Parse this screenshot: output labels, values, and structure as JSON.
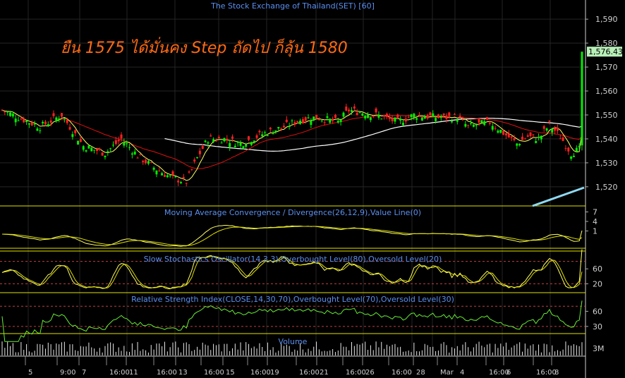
{
  "title": "The Stock Exchange of Thailand(SET) [60]",
  "annotation": "ยืน 1575 ได้มั่นคง Step ถัดไป ก็ลุ้น 1580",
  "colors": {
    "up": "#00ee00",
    "down": "#ff2020",
    "ma_fast": "#ffff66",
    "ma_mid": "#dd1010",
    "ma_slow": "#ffffff",
    "trend": "#8fd8f0",
    "panel_border": "#e0e000",
    "grid": "#252525",
    "label": "#5b8ff0",
    "annotation": "#ff6a13"
  },
  "chart_data": [
    {
      "type": "candlestick",
      "title": "The Stock Exchange of Thailand(SET) [60]",
      "ylim": [
        1512,
        1598
      ],
      "yticks": [
        "1,590",
        "1,580",
        "1,570",
        "1,560",
        "1,550",
        "1,540",
        "1,530",
        "1,520"
      ],
      "last_price": "1,576.43",
      "series_points": [
        [
          0,
          1552
        ],
        [
          8,
          1548
        ],
        [
          14,
          1545
        ],
        [
          22,
          1550
        ],
        [
          30,
          1537
        ],
        [
          38,
          1534
        ],
        [
          44,
          1540
        ],
        [
          50,
          1533
        ],
        [
          56,
          1528
        ],
        [
          62,
          1524
        ],
        [
          68,
          1522
        ],
        [
          72,
          1532
        ],
        [
          76,
          1540
        ],
        [
          82,
          1540
        ],
        [
          88,
          1538
        ],
        [
          96,
          1542
        ],
        [
          104,
          1545
        ],
        [
          110,
          1548
        ],
        [
          116,
          1549
        ],
        [
          124,
          1547
        ],
        [
          128,
          1552
        ],
        [
          138,
          1550
        ],
        [
          146,
          1547
        ],
        [
          152,
          1550
        ],
        [
          160,
          1549
        ],
        [
          168,
          1549
        ],
        [
          172,
          1545
        ],
        [
          180,
          1547
        ],
        [
          190,
          1538
        ],
        [
          194,
          1541
        ],
        [
          198,
          1540
        ],
        [
          202,
          1546
        ],
        [
          206,
          1541
        ],
        [
          210,
          1534
        ],
        [
          214,
          1536
        ]
      ],
      "axis_dates": [
        "5",
        "9:00",
        "7",
        "16:00",
        "11",
        "16:00",
        "13",
        "16:00",
        "15",
        "16:00",
        "19",
        "16:00",
        "21",
        "16:00",
        "26",
        "16:00",
        "28",
        "Mar",
        "4",
        "16:00",
        "6",
        "16:00",
        "8"
      ]
    },
    {
      "type": "line",
      "title": "Moving Average Convergence / Divergence(26,12,9),Value Line(0)",
      "yticks": [
        "7",
        "4",
        "1"
      ]
    },
    {
      "type": "line",
      "title": "Slow Stochastics Oscillator(14,3,3),Overbought Level(80),Oversold Level(20)",
      "yticks": [
        "60",
        "20"
      ],
      "levels": [
        80,
        20
      ]
    },
    {
      "type": "line",
      "title": "Relative Strength Index(CLOSE,14,30,70),Overbought Level(70),Oversold Level(30)",
      "yticks": [
        "60",
        "30"
      ],
      "levels": [
        70,
        30
      ]
    },
    {
      "type": "bar",
      "title": "Volume",
      "yticks": [
        "3M"
      ]
    }
  ]
}
